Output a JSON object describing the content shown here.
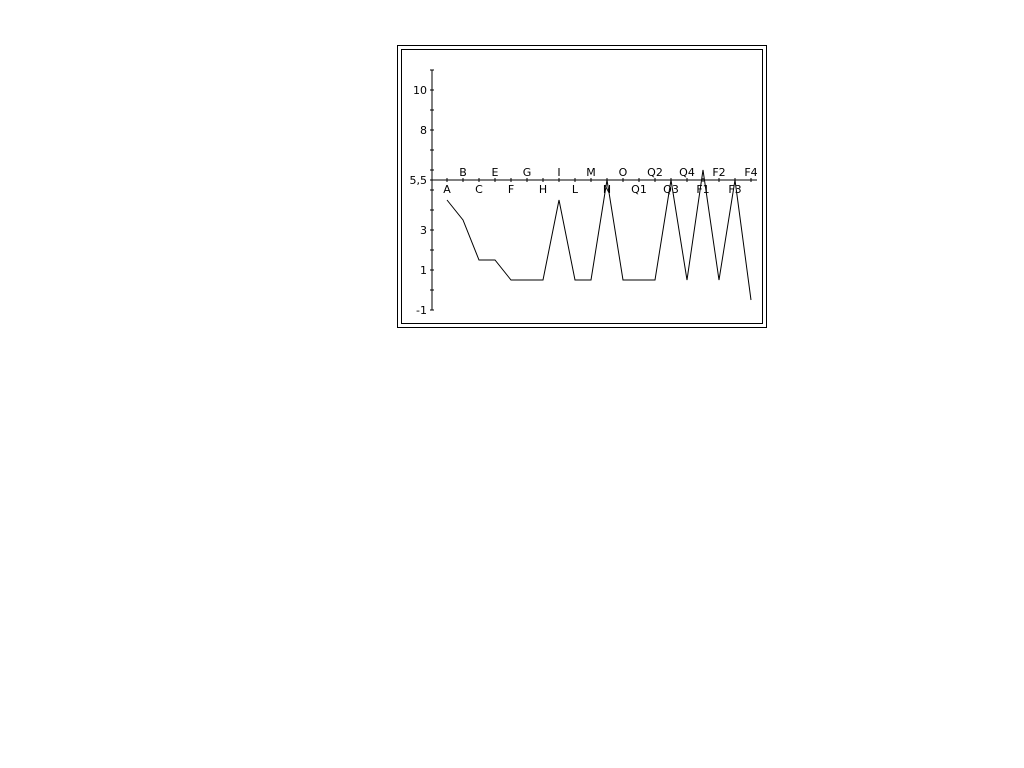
{
  "chart_data": {
    "type": "line",
    "categories": [
      "A",
      "B",
      "C",
      "E",
      "F",
      "G",
      "H",
      "I",
      "L",
      "M",
      "N",
      "O",
      "Q1",
      "Q2",
      "Q3",
      "Q4",
      "F1",
      "F2",
      "F3",
      "F4"
    ],
    "series": [
      {
        "values": [
          4.5,
          3.5,
          1.5,
          1.5,
          0.5,
          0.5,
          0.5,
          4.5,
          0.5,
          0.5,
          5.5,
          0.5,
          0.5,
          0.5,
          5.5,
          0.5,
          6,
          0.5,
          5.5,
          -0.5
        ]
      }
    ],
    "ylim": [
      -1,
      11
    ],
    "y_ticks": [
      {
        "value": 10,
        "label": "10"
      },
      {
        "value": 8,
        "label": "8"
      },
      {
        "value": 5.5,
        "label": "5,5"
      },
      {
        "value": 3,
        "label": "3"
      },
      {
        "value": 1,
        "label": "1"
      },
      {
        "value": -1,
        "label": "-1"
      }
    ],
    "y_minor_ticks": [
      11,
      10,
      9,
      8,
      7,
      6,
      5.5,
      5,
      4,
      3,
      2,
      1,
      0,
      -1
    ],
    "x_axis_crosses_y": 5.5,
    "x_label_placement": "alternating above and below the axis",
    "title": "",
    "xlabel": "",
    "ylabel": "",
    "grid": false,
    "legend": "none",
    "colors": {
      "line": "#000000",
      "frame": "#000000",
      "background": "#ffffff"
    }
  }
}
